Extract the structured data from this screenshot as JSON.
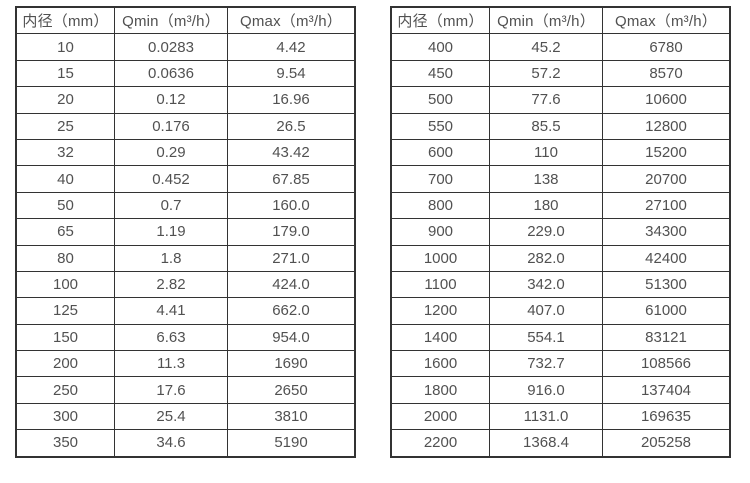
{
  "colors": {
    "background": "#ffffff",
    "table_border": "#333333",
    "cell_text": "#515151"
  },
  "tables": [
    {
      "name": "flow-spec-table-small-diameters",
      "headers": [
        "内径（mm）",
        "Qmin（m³/h）",
        "Qmax（m³/h）"
      ],
      "rows": [
        [
          "10",
          "0.0283",
          "4.42"
        ],
        [
          "15",
          "0.0636",
          "9.54"
        ],
        [
          "20",
          "0.12",
          "16.96"
        ],
        [
          "25",
          "0.176",
          "26.5"
        ],
        [
          "32",
          "0.29",
          "43.42"
        ],
        [
          "40",
          "0.452",
          "67.85"
        ],
        [
          "50",
          "0.7",
          "160.0"
        ],
        [
          "65",
          "1.19",
          "179.0"
        ],
        [
          "80",
          "1.8",
          "271.0"
        ],
        [
          "100",
          "2.82",
          "424.0"
        ],
        [
          "125",
          "4.41",
          "662.0"
        ],
        [
          "150",
          "6.63",
          "954.0"
        ],
        [
          "200",
          "11.3",
          "1690"
        ],
        [
          "250",
          "17.6",
          "2650"
        ],
        [
          "300",
          "25.4",
          "3810"
        ],
        [
          "350",
          "34.6",
          "5190"
        ]
      ]
    },
    {
      "name": "flow-spec-table-large-diameters",
      "headers": [
        "内径（mm）",
        "Qmin（m³/h）",
        "Qmax（m³/h）"
      ],
      "rows": [
        [
          "400",
          "45.2",
          "6780"
        ],
        [
          "450",
          "57.2",
          "8570"
        ],
        [
          "500",
          "77.6",
          "10600"
        ],
        [
          "550",
          "85.5",
          "12800"
        ],
        [
          "600",
          "110",
          "15200"
        ],
        [
          "700",
          "138",
          "20700"
        ],
        [
          "800",
          "180",
          "27100"
        ],
        [
          "900",
          "229.0",
          "34300"
        ],
        [
          "1000",
          "282.0",
          "42400"
        ],
        [
          "1100",
          "342.0",
          "51300"
        ],
        [
          "1200",
          "407.0",
          "61000"
        ],
        [
          "1400",
          "554.1",
          "83121"
        ],
        [
          "1600",
          "732.7",
          "108566"
        ],
        [
          "1800",
          "916.0",
          "137404"
        ],
        [
          "2000",
          "1131.0",
          "169635"
        ],
        [
          "2200",
          "1368.4",
          "205258"
        ]
      ]
    }
  ]
}
